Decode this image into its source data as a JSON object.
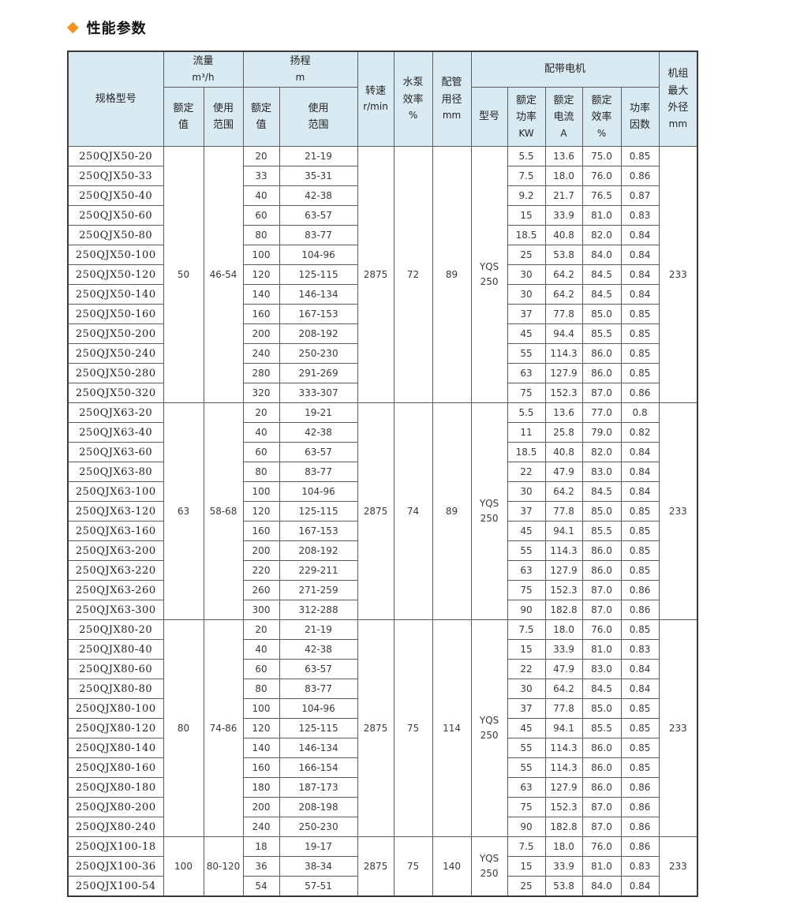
{
  "page": {
    "title": "性能参数",
    "bullet_icon": "◆",
    "accent_color": "#f7941d",
    "header_bg": "#d9eaf3"
  },
  "table": {
    "header": {
      "model": "规格型号",
      "flow_label": "流量",
      "flow_unit": "m³/h",
      "head_label": "扬程",
      "head_unit": "m",
      "rated_value": "额定值",
      "usage_range": "使用范围",
      "speed_label": "转速",
      "speed_unit": "r/min",
      "pump_eff_label": "水泵效率",
      "pump_eff_unit": "%",
      "pipe_label": "配管用径",
      "pipe_unit": "mm",
      "motor_group": "配带电机",
      "motor_model": "型号",
      "motor_power_label": "额定功率",
      "motor_power_unit": "KW",
      "motor_current_label": "额定电流",
      "motor_current_unit": "A",
      "motor_eff_label": "额定效率",
      "motor_eff_unit": "%",
      "power_factor": "功率因数",
      "unit_od_label": "机组最大外径",
      "unit_od_unit": "mm"
    },
    "sections": [
      {
        "flow_rated": "50",
        "flow_range": "46-54",
        "speed": "2875",
        "pump_eff": "72",
        "pipe_dia": "89",
        "motor_model": "YQS\n250",
        "outer_dia": "233",
        "rows": [
          {
            "model": "250QJX50-20",
            "head": "20",
            "head_range": "21-19",
            "power": "5.5",
            "current": "13.6",
            "motor_eff": "75.0",
            "pf": "0.85"
          },
          {
            "model": "250QJX50-33",
            "head": "33",
            "head_range": "35-31",
            "power": "7.5",
            "current": "18.0",
            "motor_eff": "76.0",
            "pf": "0.86"
          },
          {
            "model": "250QJX50-40",
            "head": "40",
            "head_range": "42-38",
            "power": "9.2",
            "current": "21.7",
            "motor_eff": "76.5",
            "pf": "0.87"
          },
          {
            "model": "250QJX50-60",
            "head": "60",
            "head_range": "63-57",
            "power": "15",
            "current": "33.9",
            "motor_eff": "81.0",
            "pf": "0.83"
          },
          {
            "model": "250QJX50-80",
            "head": "80",
            "head_range": "83-77",
            "power": "18.5",
            "current": "40.8",
            "motor_eff": "82.0",
            "pf": "0.84"
          },
          {
            "model": "250QJX50-100",
            "head": "100",
            "head_range": "104-96",
            "power": "25",
            "current": "53.8",
            "motor_eff": "84.0",
            "pf": "0.84"
          },
          {
            "model": "250QJX50-120",
            "head": "120",
            "head_range": "125-115",
            "power": "30",
            "current": "64.2",
            "motor_eff": "84.5",
            "pf": "0.84"
          },
          {
            "model": "250QJX50-140",
            "head": "140",
            "head_range": "146-134",
            "power": "30",
            "current": "64.2",
            "motor_eff": "84.5",
            "pf": "0.84"
          },
          {
            "model": "250QJX50-160",
            "head": "160",
            "head_range": "167-153",
            "power": "37",
            "current": "77.8",
            "motor_eff": "85.0",
            "pf": "0.85"
          },
          {
            "model": "250QJX50-200",
            "head": "200",
            "head_range": "208-192",
            "power": "45",
            "current": "94.4",
            "motor_eff": "85.5",
            "pf": "0.85"
          },
          {
            "model": "250QJX50-240",
            "head": "240",
            "head_range": "250-230",
            "power": "55",
            "current": "114.3",
            "motor_eff": "86.0",
            "pf": "0.85"
          },
          {
            "model": "250QJX50-280",
            "head": "280",
            "head_range": "291-269",
            "power": "63",
            "current": "127.9",
            "motor_eff": "86.0",
            "pf": "0.85"
          },
          {
            "model": "250QJX50-320",
            "head": "320",
            "head_range": "333-307",
            "power": "75",
            "current": "152.3",
            "motor_eff": "87.0",
            "pf": "0.86"
          }
        ]
      },
      {
        "flow_rated": "63",
        "flow_range": "58-68",
        "speed": "2875",
        "pump_eff": "74",
        "pipe_dia": "89",
        "motor_model": "YQS\n250",
        "outer_dia": "233",
        "rows": [
          {
            "model": "250QJX63-20",
            "head": "20",
            "head_range": "19-21",
            "power": "5.5",
            "current": "13.6",
            "motor_eff": "77.0",
            "pf": "0.8"
          },
          {
            "model": "250QJX63-40",
            "head": "40",
            "head_range": "42-38",
            "power": "11",
            "current": "25.8",
            "motor_eff": "79.0",
            "pf": "0.82"
          },
          {
            "model": "250QJX63-60",
            "head": "60",
            "head_range": "63-57",
            "power": "18.5",
            "current": "40.8",
            "motor_eff": "82.0",
            "pf": "0.84"
          },
          {
            "model": "250QJX63-80",
            "head": "80",
            "head_range": "83-77",
            "power": "22",
            "current": "47.9",
            "motor_eff": "83.0",
            "pf": "0.84"
          },
          {
            "model": "250QJX63-100",
            "head": "100",
            "head_range": "104-96",
            "power": "30",
            "current": "64.2",
            "motor_eff": "84.5",
            "pf": "0.84"
          },
          {
            "model": "250QJX63-120",
            "head": "120",
            "head_range": "125-115",
            "power": "37",
            "current": "77.8",
            "motor_eff": "85.0",
            "pf": "0.85"
          },
          {
            "model": "250QJX63-160",
            "head": "160",
            "head_range": "167-153",
            "power": "45",
            "current": "94.1",
            "motor_eff": "85.5",
            "pf": "0.85"
          },
          {
            "model": "250QJX63-200",
            "head": "200",
            "head_range": "208-192",
            "power": "55",
            "current": "114.3",
            "motor_eff": "86.0",
            "pf": "0.85"
          },
          {
            "model": "250QJX63-220",
            "head": "220",
            "head_range": "229-211",
            "power": "63",
            "current": "127.9",
            "motor_eff": "86.0",
            "pf": "0.85"
          },
          {
            "model": "250QJX63-260",
            "head": "260",
            "head_range": "271-259",
            "power": "75",
            "current": "152.3",
            "motor_eff": "87.0",
            "pf": "0.86"
          },
          {
            "model": "250QJX63-300",
            "head": "300",
            "head_range": "312-288",
            "power": "90",
            "current": "182.8",
            "motor_eff": "87.0",
            "pf": "0.86"
          }
        ]
      },
      {
        "flow_rated": "80",
        "flow_range": "74-86",
        "speed": "2875",
        "pump_eff": "75",
        "pipe_dia": "114",
        "motor_model": "YQS\n250",
        "outer_dia": "233",
        "rows": [
          {
            "model": "250QJX80-20",
            "head": "20",
            "head_range": "21-19",
            "power": "7.5",
            "current": "18.0",
            "motor_eff": "76.0",
            "pf": "0.85"
          },
          {
            "model": "250QJX80-40",
            "head": "40",
            "head_range": "42-38",
            "power": "15",
            "current": "33.9",
            "motor_eff": "81.0",
            "pf": "0.83"
          },
          {
            "model": "250QJX80-60",
            "head": "60",
            "head_range": "63-57",
            "power": "22",
            "current": "47.9",
            "motor_eff": "83.0",
            "pf": "0.84"
          },
          {
            "model": "250QJX80-80",
            "head": "80",
            "head_range": "83-77",
            "power": "30",
            "current": "64.2",
            "motor_eff": "84.5",
            "pf": "0.84"
          },
          {
            "model": "250QJX80-100",
            "head": "100",
            "head_range": "104-96",
            "power": "37",
            "current": "77.8",
            "motor_eff": "85.0",
            "pf": "0.85"
          },
          {
            "model": "250QJX80-120",
            "head": "120",
            "head_range": "125-115",
            "power": "45",
            "current": "94.1",
            "motor_eff": "85.5",
            "pf": "0.85"
          },
          {
            "model": "250QJX80-140",
            "head": "140",
            "head_range": "146-134",
            "power": "55",
            "current": "114.3",
            "motor_eff": "86.0",
            "pf": "0.85"
          },
          {
            "model": "250QJX80-160",
            "head": "160",
            "head_range": "166-154",
            "power": "55",
            "current": "114.3",
            "motor_eff": "86.0",
            "pf": "0.85"
          },
          {
            "model": "250QJX80-180",
            "head": "180",
            "head_range": "187-173",
            "power": "63",
            "current": "127.9",
            "motor_eff": "86.0",
            "pf": "0.86"
          },
          {
            "model": "250QJX80-200",
            "head": "200",
            "head_range": "208-198",
            "power": "75",
            "current": "152.3",
            "motor_eff": "87.0",
            "pf": "0.86"
          },
          {
            "model": "250QJX80-240",
            "head": "240",
            "head_range": "250-230",
            "power": "90",
            "current": "182.8",
            "motor_eff": "87.0",
            "pf": "0.86"
          }
        ]
      },
      {
        "flow_rated": "100",
        "flow_range": "80-120",
        "speed": "2875",
        "pump_eff": "75",
        "pipe_dia": "140",
        "motor_model": "YQS\n250",
        "outer_dia": "233",
        "rows": [
          {
            "model": "250QJX100-18",
            "head": "18",
            "head_range": "19-17",
            "power": "7.5",
            "current": "18.0",
            "motor_eff": "76.0",
            "pf": "0.86"
          },
          {
            "model": "250QJX100-36",
            "head": "36",
            "head_range": "38-34",
            "power": "15",
            "current": "33.9",
            "motor_eff": "81.0",
            "pf": "0.83"
          },
          {
            "model": "250QJX100-54",
            "head": "54",
            "head_range": "57-51",
            "power": "25",
            "current": "53.8",
            "motor_eff": "84.0",
            "pf": "0.84"
          }
        ]
      }
    ]
  }
}
